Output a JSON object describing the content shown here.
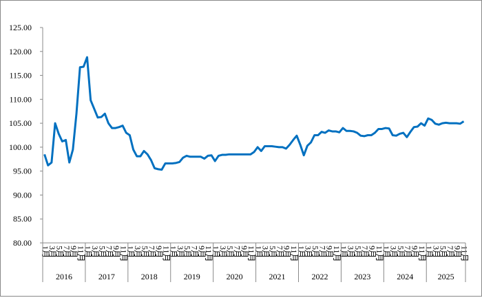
{
  "chart_data": {
    "type": "line",
    "color": "#0070c0",
    "categories": [
      "1月",
      null,
      "3月",
      null,
      "5月",
      null,
      "7月",
      null,
      "9月",
      null,
      "11月",
      null,
      "1月",
      null,
      "3月",
      null,
      "5月",
      null,
      "7月",
      null,
      "9月",
      null,
      "11月",
      null,
      "1月",
      null,
      "3月",
      null,
      "5月",
      null,
      "7月",
      null,
      "9月",
      null,
      "11月",
      null,
      "1月",
      null,
      "3月",
      null,
      "5月",
      null,
      "7月",
      null,
      "9月",
      null,
      "11月",
      null,
      "1月",
      null,
      "3月",
      null,
      "5月",
      null,
      "7月",
      null,
      "9月",
      null,
      "11月",
      null,
      "1月",
      null,
      "3月",
      null,
      "5月",
      null,
      "7月",
      null,
      "9月",
      null,
      "11月",
      null,
      "1月",
      null,
      "3月",
      null,
      "5月",
      null,
      "7月",
      null,
      "9月",
      null,
      "11月",
      null,
      "1月",
      null,
      "3月",
      null,
      "5月",
      null,
      "7月",
      null,
      "9月",
      null,
      "11月",
      null,
      "1月",
      null,
      "3月",
      null,
      "5月",
      null,
      "7月",
      null,
      "9月",
      null,
      "11月",
      null,
      "1月",
      null,
      "3月",
      null,
      "5月",
      null,
      "7月",
      null,
      "9月",
      null,
      "11月"
    ],
    "year_labels": [
      "2016",
      "2017",
      "2018",
      "2019",
      "2020",
      "2021",
      "2022",
      "2023",
      "2024",
      "2025"
    ],
    "values": [
      98.5,
      96.2,
      96.8,
      105,
      102.8,
      101.2,
      101.5,
      96.8,
      99.5,
      107,
      116.7,
      116.8,
      118.8,
      109.8,
      108,
      106.2,
      106.3,
      107,
      105,
      104,
      104,
      104.2,
      104.5,
      103,
      102.5,
      99.5,
      98.1,
      98.1,
      99.2,
      98.5,
      97.3,
      95.6,
      95.4,
      95.3,
      96.6,
      96.6,
      96.6,
      96.7,
      96.9,
      97.8,
      98.2,
      98,
      98,
      98,
      98,
      97.6,
      98.2,
      98.3,
      97.1,
      98.2,
      98.4,
      98.4,
      98.5,
      98.5,
      98.5,
      98.5,
      98.5,
      98.5,
      98.5,
      99,
      100,
      99.2,
      100.2,
      100.2,
      100.2,
      100.1,
      100,
      100,
      99.7,
      100.5,
      101.5,
      102.4,
      100.5,
      98.3,
      100.3,
      101,
      102.5,
      102.5,
      103.2,
      103,
      103.5,
      103.3,
      103.3,
      103.1,
      104,
      103.4,
      103.4,
      103.3,
      103,
      102.4,
      102.3,
      102.5,
      102.5,
      103,
      103.8,
      103.8,
      104,
      103.9,
      102.5,
      102.4,
      102.8,
      103,
      102.1,
      103.2,
      104.2,
      104.3,
      105,
      104.5,
      106,
      105.7,
      104.9,
      104.7,
      105,
      105.1,
      105,
      105,
      105,
      104.9,
      105.4
    ],
    "ylim": [
      80,
      125
    ],
    "yticks": [
      {
        "value": 80,
        "label": "80.00"
      },
      {
        "value": 85,
        "label": "85.00"
      },
      {
        "value": 90,
        "label": "90.00"
      },
      {
        "value": 95,
        "label": "95.00"
      },
      {
        "value": 100,
        "label": "100.00"
      },
      {
        "value": 105,
        "label": "105.00"
      },
      {
        "value": 110,
        "label": "110.00"
      },
      {
        "value": 115,
        "label": "115.00"
      },
      {
        "value": 120,
        "label": "120.00"
      },
      {
        "value": 125,
        "label": "125.00"
      }
    ]
  }
}
